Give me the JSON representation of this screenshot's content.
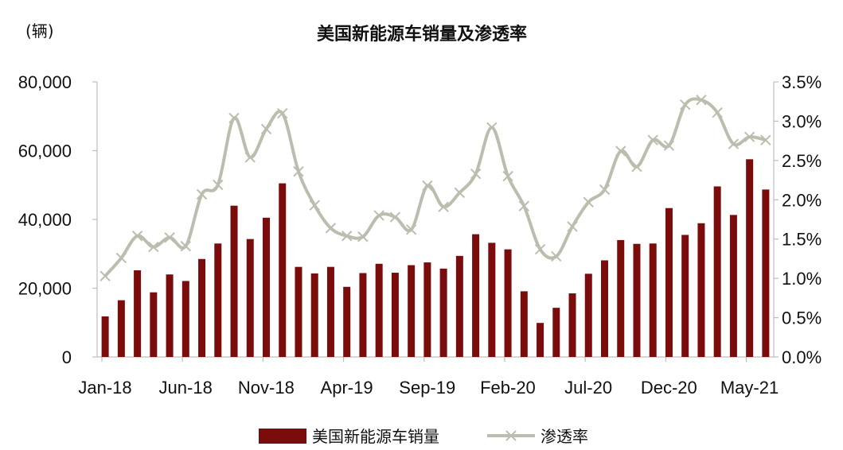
{
  "chart_data": {
    "type": "bar+line",
    "title": "美国新能源车销量及渗透率",
    "unit_label": "(辆)",
    "x_tick_labels": [
      "Jan-18",
      "Jun-18",
      "Nov-18",
      "Apr-19",
      "Sep-19",
      "Feb-20",
      "Jul-20",
      "Dec-20",
      "May-21"
    ],
    "x_tick_indices": [
      0,
      5,
      10,
      15,
      20,
      25,
      30,
      35,
      40
    ],
    "months": [
      "Jan-18",
      "Feb-18",
      "Mar-18",
      "Apr-18",
      "May-18",
      "Jun-18",
      "Jul-18",
      "Aug-18",
      "Sep-18",
      "Oct-18",
      "Nov-18",
      "Dec-18",
      "Jan-19",
      "Feb-19",
      "Mar-19",
      "Apr-19",
      "May-19",
      "Jun-19",
      "Jul-19",
      "Aug-19",
      "Sep-19",
      "Oct-19",
      "Nov-19",
      "Dec-19",
      "Jan-20",
      "Feb-20",
      "Mar-20",
      "Apr-20",
      "May-20",
      "Jun-20",
      "Jul-20",
      "Aug-20",
      "Sep-20",
      "Oct-20",
      "Nov-20",
      "Dec-20",
      "Jan-21",
      "Feb-21",
      "Mar-21",
      "Apr-21",
      "May-21",
      "Jun-21"
    ],
    "y_left": {
      "ticks": [
        0,
        20000,
        40000,
        60000,
        80000
      ],
      "tick_labels": [
        "0",
        "20,000",
        "40,000",
        "60,000",
        "80,000"
      ],
      "range": [
        0,
        80000
      ]
    },
    "y_right": {
      "ticks": [
        0,
        0.5,
        1.0,
        1.5,
        2.0,
        2.5,
        3.0,
        3.5
      ],
      "tick_labels": [
        "0.0%",
        "0.5%",
        "1.0%",
        "1.5%",
        "2.0%",
        "2.5%",
        "3.0%",
        "3.5%"
      ],
      "range": [
        0,
        3.5
      ]
    },
    "series": [
      {
        "name": "美国新能源车销量",
        "type": "bar",
        "axis": "left",
        "color": "#7B0C0C",
        "values": [
          11800,
          16500,
          25200,
          18800,
          24000,
          22100,
          28500,
          33000,
          44000,
          34300,
          40500,
          50500,
          26200,
          24300,
          26200,
          20400,
          24400,
          27100,
          24500,
          26700,
          27500,
          25700,
          29400,
          35700,
          33200,
          31300,
          19100,
          9900,
          14300,
          18500,
          24200,
          28100,
          34000,
          32900,
          33000,
          43300,
          35500,
          38900,
          49600,
          41300,
          57500,
          48700
        ]
      },
      {
        "name": "渗透率",
        "type": "line",
        "axis": "right",
        "color": "#BDBDAF",
        "values": [
          1.03,
          1.26,
          1.54,
          1.4,
          1.52,
          1.41,
          2.07,
          2.19,
          3.04,
          2.54,
          2.9,
          3.1,
          2.36,
          1.93,
          1.64,
          1.54,
          1.53,
          1.8,
          1.78,
          1.62,
          2.18,
          1.91,
          2.09,
          2.33,
          2.92,
          2.3,
          1.92,
          1.37,
          1.28,
          1.66,
          1.97,
          2.13,
          2.62,
          2.42,
          2.76,
          2.69,
          3.21,
          3.27,
          3.11,
          2.71,
          2.8,
          2.76
        ]
      }
    ],
    "legend_placement": "bottom-center",
    "grid": false
  }
}
